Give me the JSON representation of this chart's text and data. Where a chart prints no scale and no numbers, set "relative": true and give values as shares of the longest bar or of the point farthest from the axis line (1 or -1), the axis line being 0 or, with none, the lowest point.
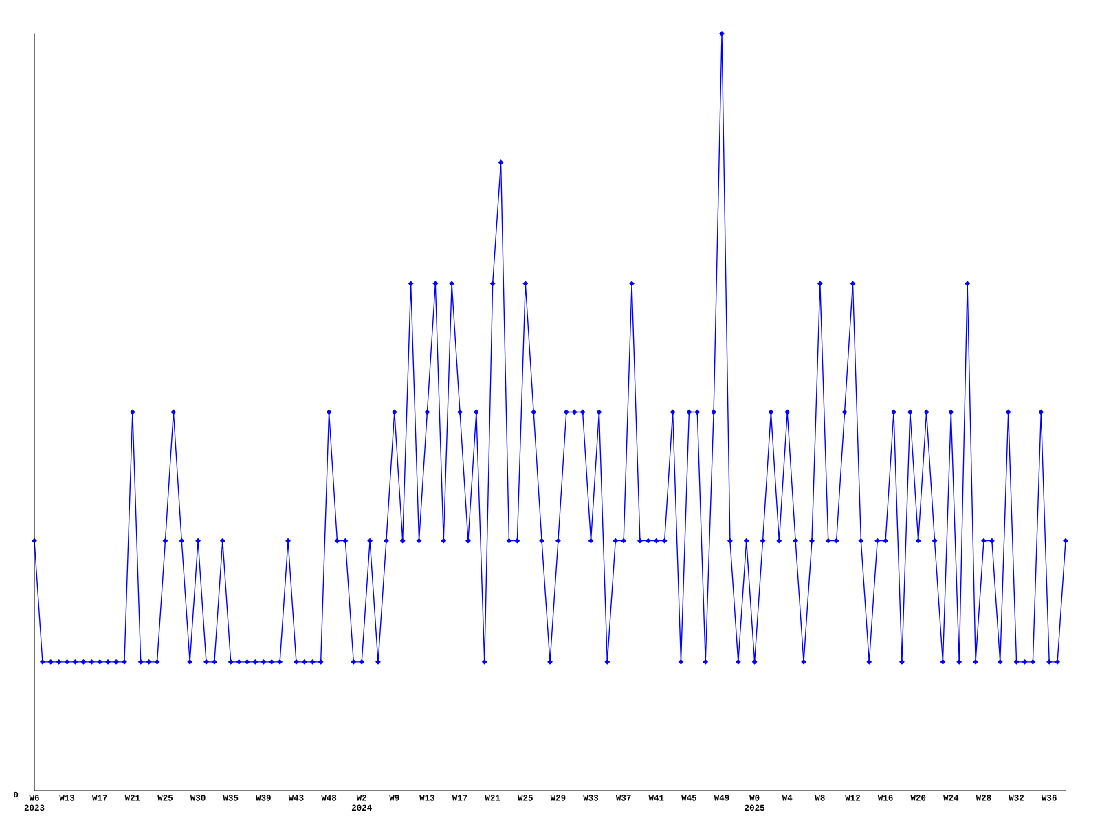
{
  "chart_data": {
    "type": "line",
    "relative": true,
    "categories": [
      "W6\n2023",
      null,
      null,
      null,
      "W13",
      null,
      null,
      null,
      "W17",
      null,
      null,
      null,
      "W21",
      null,
      null,
      null,
      "W25",
      null,
      null,
      null,
      "W30",
      null,
      null,
      null,
      "W35",
      null,
      null,
      null,
      "W39",
      null,
      null,
      null,
      "W43",
      null,
      null,
      null,
      "W48",
      null,
      null,
      null,
      "W2\n2024",
      null,
      null,
      null,
      "W9",
      null,
      null,
      null,
      "W13",
      null,
      null,
      null,
      "W17",
      null,
      null,
      null,
      "W21",
      null,
      null,
      null,
      "W25",
      null,
      null,
      null,
      "W29",
      null,
      null,
      null,
      "W33",
      null,
      null,
      null,
      "W37",
      null,
      null,
      null,
      "W41",
      null,
      null,
      null,
      "W45",
      null,
      null,
      null,
      "W49",
      null,
      null,
      null,
      "W0\n2025",
      null,
      null,
      null,
      "W4",
      null,
      null,
      null,
      "W8",
      null,
      null,
      null,
      "W12",
      null,
      null,
      null,
      "W16",
      null,
      null,
      null,
      "W20",
      null,
      null,
      null,
      "W24",
      null,
      null,
      null,
      "W28",
      null,
      null,
      null,
      "W32",
      null,
      null,
      null,
      "W36",
      null,
      null
    ],
    "series": [
      {
        "color": "#0000ff",
        "values": [
          0.33,
          0.17,
          0.17,
          0.17,
          0.17,
          0.17,
          0.17,
          0.17,
          0.17,
          0.17,
          0.17,
          0.17,
          0.5,
          0.17,
          0.17,
          0.17,
          0.33,
          0.5,
          0.33,
          0.17,
          0.33,
          0.17,
          0.17,
          0.33,
          0.17,
          0.17,
          0.17,
          0.17,
          0.17,
          0.17,
          0.17,
          0.33,
          0.17,
          0.17,
          0.17,
          0.17,
          0.5,
          0.33,
          0.33,
          0.17,
          0.17,
          0.33,
          0.17,
          0.33,
          0.5,
          0.33,
          0.67,
          0.33,
          0.5,
          0.67,
          0.33,
          0.67,
          0.5,
          0.33,
          0.5,
          0.17,
          0.67,
          0.83,
          0.33,
          0.33,
          0.67,
          0.5,
          0.33,
          0.17,
          0.33,
          0.5,
          0.5,
          0.5,
          0.33,
          0.5,
          0.17,
          0.33,
          0.33,
          0.67,
          0.33,
          0.33,
          0.33,
          0.33,
          0.5,
          0.17,
          0.5,
          0.5,
          0.17,
          0.5,
          1,
          0.33,
          0.17,
          0.33,
          0.17,
          0.33,
          0.5,
          0.33,
          0.5,
          0.33,
          0.17,
          0.33,
          0.67,
          0.33,
          0.33,
          0.5,
          0.67,
          0.33,
          0.17,
          0.33,
          0.33,
          0.5,
          0.17,
          0.5,
          0.33,
          0.5,
          0.33,
          0.17,
          0.5,
          0.17,
          0.67,
          0.17,
          0.33,
          0.33,
          0.17,
          0.5,
          0.17,
          0.17,
          0.17,
          0.5,
          0.17,
          0.17,
          0.33
        ]
      }
    ],
    "marker": "diamond",
    "line_style": "solid",
    "grid": false,
    "legend": false,
    "annotations": [
      "0"
    ]
  }
}
